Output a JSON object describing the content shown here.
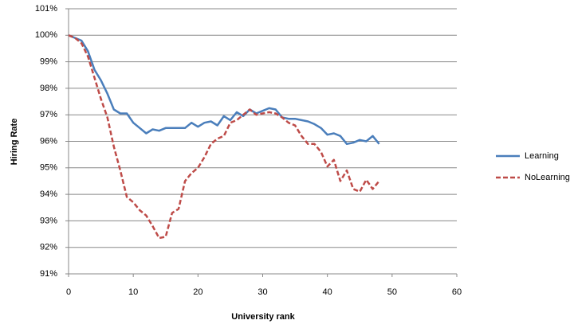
{
  "chart_data": {
    "type": "line",
    "x_label": "University rank",
    "y_label": "Hiring Rate",
    "x": [
      0,
      1,
      2,
      3,
      4,
      5,
      6,
      7,
      8,
      9,
      10,
      11,
      12,
      13,
      14,
      15,
      16,
      17,
      18,
      19,
      20,
      21,
      22,
      23,
      24,
      25,
      26,
      27,
      28,
      29,
      30,
      31,
      32,
      33,
      34,
      35,
      36,
      37,
      38,
      39,
      40,
      41,
      42,
      43,
      44,
      45,
      46,
      47,
      48
    ],
    "series": [
      {
        "name": "Learning",
        "color": "#4a7ebb",
        "dash": false,
        "values": [
          100,
          99.9,
          99.8,
          99.4,
          98.7,
          98.3,
          97.8,
          97.2,
          97.05,
          97.05,
          96.7,
          96.5,
          96.3,
          96.45,
          96.4,
          96.5,
          96.5,
          96.5,
          96.5,
          96.7,
          96.55,
          96.7,
          96.75,
          96.6,
          96.95,
          96.8,
          97.1,
          96.95,
          97.2,
          97.05,
          97.15,
          97.25,
          97.2,
          96.9,
          96.85,
          96.85,
          96.8,
          96.75,
          96.65,
          96.5,
          96.25,
          96.3,
          96.2,
          95.9,
          95.95,
          96.05,
          96.0,
          96.2,
          95.9
        ]
      },
      {
        "name": "NoLearning",
        "color": "#be4b48",
        "dash": true,
        "values": [
          100,
          99.9,
          99.7,
          99.2,
          98.4,
          97.6,
          96.9,
          95.8,
          94.9,
          93.9,
          93.7,
          93.4,
          93.2,
          92.8,
          92.35,
          92.4,
          93.3,
          93.45,
          94.5,
          94.8,
          95.0,
          95.4,
          95.9,
          96.1,
          96.2,
          96.7,
          96.8,
          97.0,
          97.2,
          97.0,
          97.05,
          97.1,
          97.05,
          96.9,
          96.7,
          96.6,
          96.2,
          95.9,
          95.9,
          95.6,
          95.05,
          95.3,
          94.5,
          94.9,
          94.2,
          94.1,
          94.55,
          94.2,
          94.5
        ]
      }
    ],
    "xlim": [
      0,
      60
    ],
    "xticks": [
      0,
      10,
      20,
      30,
      40,
      50,
      60
    ],
    "ylim": [
      91,
      101
    ],
    "yticks": [
      {
        "value": 91,
        "label": "91%"
      },
      {
        "value": 92,
        "label": "92%"
      },
      {
        "value": 93,
        "label": "93%"
      },
      {
        "value": 94,
        "label": "94%"
      },
      {
        "value": 95,
        "label": "95%"
      },
      {
        "value": 96,
        "label": "96%"
      },
      {
        "value": 97,
        "label": "97%"
      },
      {
        "value": 98,
        "label": "98%"
      },
      {
        "value": 99,
        "label": "99%"
      },
      {
        "value": 100,
        "label": "100%"
      },
      {
        "value": 101,
        "label": "101%"
      }
    ],
    "grid": true,
    "legend": "right"
  }
}
